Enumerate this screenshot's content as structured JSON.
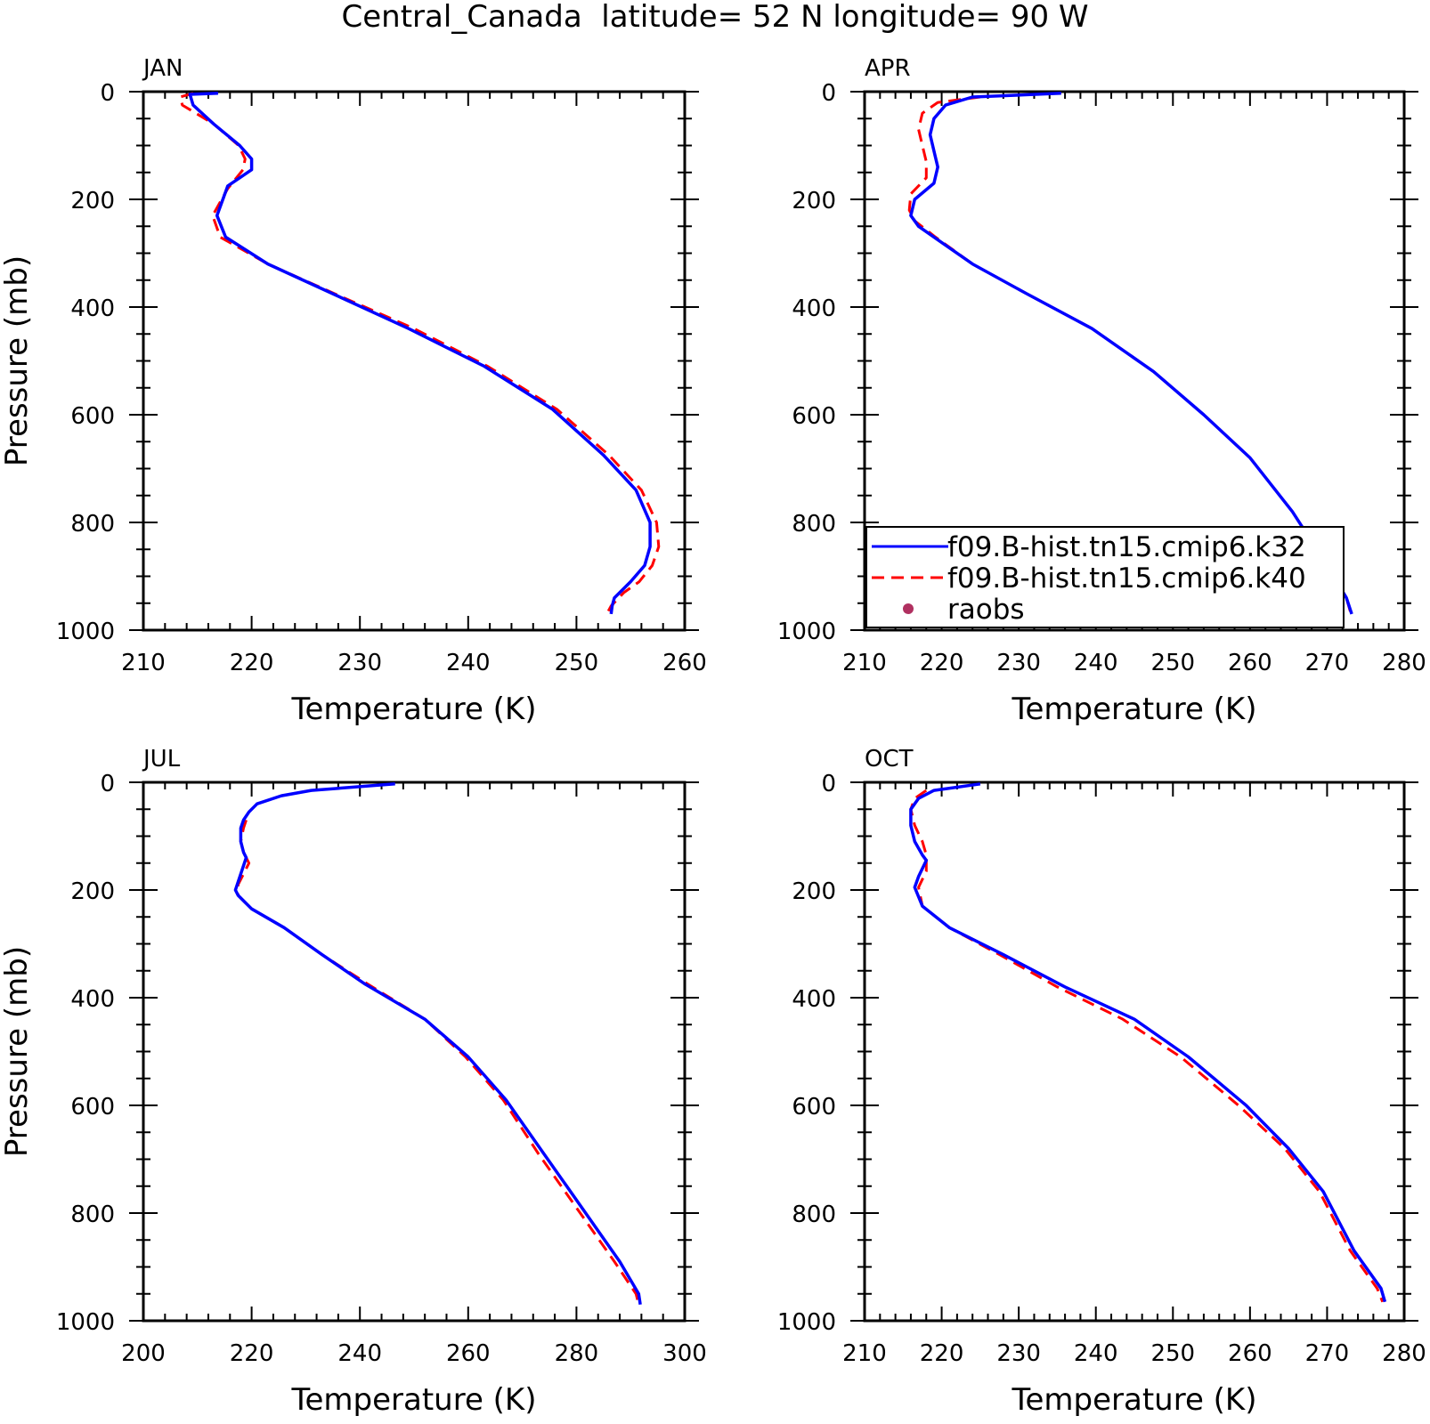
{
  "figure": {
    "title": "Central_Canada  latitude= 52 N longitude= 90 W"
  },
  "legend": {
    "entries": [
      {
        "label": "f09.B-hist.tn15.cmip6.k32",
        "color": "#0000ff",
        "style": "solid"
      },
      {
        "label": "f09.B-hist.tn15.cmip6.k40",
        "color": "#ff0000",
        "style": "dashed"
      },
      {
        "label": "raobs",
        "color": "#b03060",
        "style": "marker"
      }
    ]
  },
  "chart_data": [
    {
      "type": "line",
      "panel_label": "JAN",
      "xlabel": "Temperature (K)",
      "ylabel": "Pressure (mb)",
      "xlim": [
        210,
        260
      ],
      "xticks": [
        210,
        220,
        230,
        240,
        250,
        260
      ],
      "ylim": [
        0,
        1000
      ],
      "yticks": [
        0,
        200,
        400,
        600,
        800,
        1000
      ],
      "y_inverted": true,
      "series": [
        {
          "name": "f09.B-hist.tn15.cmip6.k32",
          "color": "#0000ff",
          "dash": "solid",
          "x": [
            216.9,
            214.3,
            214.6,
            216.5,
            218.9,
            220.0,
            220.0,
            217.8,
            216.8,
            217.6,
            221.5,
            228.0,
            234.5,
            241.5,
            247.8,
            252.5,
            255.5,
            256.8,
            256.8,
            256.3,
            255.0,
            253.5,
            253.3,
            253.2
          ],
          "y": [
            3,
            5,
            25,
            60,
            100,
            125,
            145,
            175,
            230,
            270,
            320,
            380,
            440,
            510,
            590,
            675,
            740,
            800,
            845,
            880,
            910,
            940,
            955,
            970
          ]
        },
        {
          "name": "f09.B-hist.tn15.cmip6.k40",
          "color": "#ff0000",
          "dash": "dashed",
          "x": [
            214.6,
            213.4,
            213.6,
            216.5,
            218.8,
            219.4,
            219.2,
            217.8,
            216.4,
            217.1,
            221.5,
            228.2,
            235.0,
            241.8,
            248.2,
            253.0,
            256.0,
            257.4,
            257.6,
            257.0,
            255.8,
            254.4,
            253.2,
            252.8
          ],
          "y": [
            3,
            10,
            25,
            60,
            100,
            125,
            145,
            180,
            230,
            270,
            320,
            380,
            440,
            510,
            590,
            675,
            740,
            800,
            845,
            880,
            910,
            930,
            955,
            970
          ]
        }
      ]
    },
    {
      "type": "line",
      "panel_label": "APR",
      "xlabel": "Temperature (K)",
      "ylabel": "",
      "xlim": [
        210,
        280
      ],
      "xticks": [
        210,
        220,
        230,
        240,
        250,
        260,
        270,
        280
      ],
      "ylim": [
        0,
        1000
      ],
      "yticks": [
        0,
        200,
        400,
        600,
        800,
        1000
      ],
      "y_inverted": true,
      "series": [
        {
          "name": "f09.B-hist.tn15.cmip6.k32",
          "color": "#0000ff",
          "dash": "solid",
          "x": [
            235.5,
            224.0,
            220.5,
            219.0,
            218.5,
            219.0,
            219.5,
            219.0,
            216.5,
            216.0,
            217.0,
            219.5,
            224.0,
            231.0,
            239.5,
            247.5,
            254.0,
            260.0,
            265.5,
            270.0,
            272.5,
            273.2
          ],
          "y": [
            3,
            10,
            25,
            50,
            80,
            110,
            140,
            170,
            200,
            230,
            250,
            275,
            320,
            375,
            440,
            520,
            600,
            680,
            780,
            880,
            940,
            970
          ]
        },
        {
          "name": "f09.B-hist.tn15.cmip6.k40",
          "color": "#ff0000",
          "dash": "dashed",
          "x": [
            225.0,
            219.5,
            217.5,
            217.0,
            217.5,
            218.0,
            218.0,
            216.0,
            215.8,
            216.5,
            219.2,
            224.0,
            231.0,
            239.5,
            247.5,
            254.0,
            260.0,
            265.5,
            270.0,
            272.5,
            273.0
          ],
          "y": [
            10,
            20,
            40,
            70,
            100,
            130,
            160,
            190,
            220,
            240,
            270,
            320,
            375,
            440,
            520,
            600,
            680,
            780,
            880,
            940,
            965
          ]
        }
      ]
    },
    {
      "type": "line",
      "panel_label": "JUL",
      "xlabel": "Temperature (K)",
      "ylabel": "Pressure (mb)",
      "xlim": [
        200,
        300
      ],
      "xticks": [
        200,
        220,
        240,
        260,
        280,
        300
      ],
      "ylim": [
        0,
        1000
      ],
      "yticks": [
        0,
        200,
        400,
        600,
        800,
        1000
      ],
      "y_inverted": true,
      "series": [
        {
          "name": "f09.B-hist.tn15.cmip6.k32",
          "color": "#0000ff",
          "dash": "solid",
          "x": [
            246.5,
            231.0,
            225.5,
            221.0,
            219.5,
            218.5,
            218.0,
            218.0,
            218.5,
            219.0,
            218.0,
            217.0,
            217.5,
            220.0,
            226.0,
            233.0,
            241.0,
            252.0,
            260.0,
            267.0,
            274.0,
            281.0,
            288.0,
            291.5,
            291.8
          ],
          "y": [
            3,
            15,
            25,
            40,
            55,
            70,
            85,
            110,
            130,
            140,
            170,
            200,
            210,
            235,
            270,
            320,
            375,
            440,
            510,
            590,
            690,
            790,
            890,
            950,
            970
          ]
        },
        {
          "name": "f09.B-hist.tn15.cmip6.k40",
          "color": "#ff0000",
          "dash": "dashed",
          "x": [
            219.0,
            218.5,
            218.0,
            218.5,
            219.5,
            218.5,
            217.5,
            217.5,
            220.0,
            226.0,
            233.0,
            241.5,
            252.0,
            259.5,
            266.5,
            273.0,
            280.0,
            287.0,
            291.0,
            291.5
          ],
          "y": [
            70,
            85,
            110,
            130,
            150,
            170,
            190,
            210,
            235,
            270,
            320,
            375,
            440,
            510,
            590,
            690,
            790,
            890,
            950,
            970
          ]
        }
      ]
    },
    {
      "type": "line",
      "panel_label": "OCT",
      "xlabel": "Temperature (K)",
      "ylabel": "",
      "xlim": [
        210,
        280
      ],
      "xticks": [
        210,
        220,
        230,
        240,
        250,
        260,
        270,
        280
      ],
      "ylim": [
        0,
        1000
      ],
      "yticks": [
        0,
        200,
        400,
        600,
        800,
        1000
      ],
      "y_inverted": true,
      "series": [
        {
          "name": "f09.B-hist.tn15.cmip6.k32",
          "color": "#0000ff",
          "dash": "solid",
          "x": [
            225.0,
            219.0,
            217.0,
            216.0,
            216.0,
            216.5,
            217.5,
            218.0,
            217.0,
            216.5,
            217.5,
            221.0,
            228.0,
            236.0,
            245.0,
            252.0,
            259.5,
            265.0,
            269.5,
            273.5,
            277.0,
            277.5
          ],
          "y": [
            3,
            15,
            30,
            50,
            80,
            110,
            135,
            145,
            175,
            195,
            230,
            270,
            320,
            380,
            440,
            510,
            600,
            680,
            760,
            870,
            940,
            965
          ]
        },
        {
          "name": "f09.B-hist.tn15.cmip6.k40",
          "color": "#ff0000",
          "dash": "dashed",
          "x": [
            218.0,
            216.5,
            216.0,
            216.5,
            217.5,
            218.0,
            218.0,
            217.0,
            217.5,
            221.0,
            227.5,
            235.0,
            243.5,
            251.0,
            258.5,
            264.5,
            269.0,
            273.0,
            276.5,
            277.2
          ],
          "y": [
            15,
            30,
            50,
            80,
            110,
            135,
            165,
            195,
            230,
            270,
            320,
            380,
            440,
            510,
            600,
            680,
            760,
            870,
            940,
            965
          ]
        }
      ]
    }
  ]
}
